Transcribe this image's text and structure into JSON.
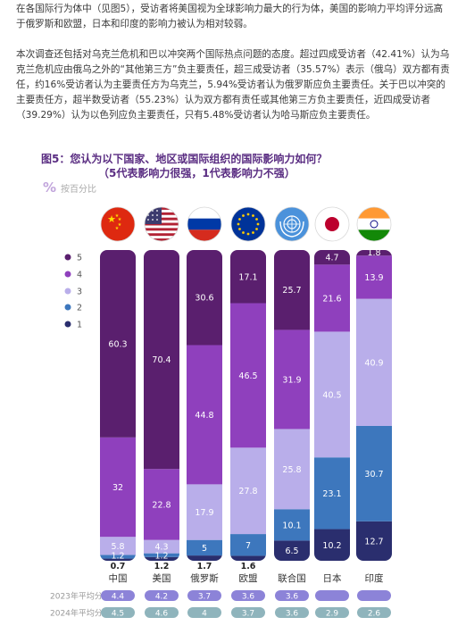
{
  "paragraphs": {
    "p1": "在各国际行为体中（见图5），受访者将美国视为全球影响力最大的行为体，美国的影响力平均评分远高于俄罗斯和欧盟，日本和印度的影响力被认为相对较弱。",
    "p2": "本次调查还包括对乌克兰危机和巴以冲突两个国际热点问题的态度。超过四成受访者（42.41%）认为乌克兰危机应由俄乌之外的“其他第三方”负主要责任，超三成受访者（35.57%）表示（俄乌）双方都有责任，约16%受访者认为主要责任方为乌克兰，5.94%受访者认为俄罗斯应负主要责任。关于巴以冲突的主要责任方，超半数受访者（55.23%）认为双方都有责任或其他第三方负主要责任，近四成受访者（39.29%）认为以色列应负主要责任，只有5.48%受访者认为哈马斯应负主要责任。"
  },
  "figure": {
    "title": "图5：您认为以下国家、地区或国际组织的国际影响力如何？",
    "subtitle": "（5代表影响力很强，1代表影响力不强）",
    "percent_icon": "percent-icon",
    "percent_label": "按百分比"
  },
  "chart_data": {
    "type": "bar",
    "stacked": true,
    "categories": [
      "中国",
      "美国",
      "俄罗斯",
      "欧盟",
      "联合国",
      "日本",
      "印度"
    ],
    "category_icons": [
      "china-flag-icon",
      "usa-flag-icon",
      "russia-flag-icon",
      "eu-flag-icon",
      "un-flag-icon",
      "japan-flag-icon",
      "india-flag-icon"
    ],
    "series": [
      {
        "name": "1",
        "color": "#2a2e6e",
        "values": [
          0.7,
          1.2,
          1.7,
          1.6,
          6.5,
          10.2,
          12.7
        ],
        "labels": [
          "0.7",
          "1.2",
          "1.7",
          "1.6",
          "6.5",
          "10.2",
          "12.7"
        ]
      },
      {
        "name": "2",
        "color": "#3d77bd",
        "values": [
          1.2,
          1.2,
          5,
          7,
          10.1,
          23.1,
          30.7
        ],
        "labels": [
          "1.2",
          "1.2",
          "5",
          "7",
          "10.1",
          "23.1",
          "30.7"
        ]
      },
      {
        "name": "3",
        "color": "#b9aeea",
        "values": [
          5.8,
          4.3,
          17.9,
          27.8,
          25.8,
          40.5,
          40.9
        ],
        "labels": [
          "5.8",
          "4.3",
          "17.9",
          "27.8",
          "25.8",
          "40.5",
          "40.9"
        ]
      },
      {
        "name": "4",
        "color": "#8f40bd",
        "values": [
          32,
          22.8,
          44.8,
          46.5,
          31.9,
          21.6,
          13.9
        ],
        "labels": [
          "32",
          "22.8",
          "44.8",
          "46.5",
          "31.9",
          "21.6",
          "13.9"
        ]
      },
      {
        "name": "5",
        "color": "#5a1f6e",
        "values": [
          60.3,
          70.4,
          30.6,
          17.1,
          25.7,
          4.7,
          1.8
        ],
        "labels": [
          "60.3",
          "70.4",
          "30.6",
          "17.1",
          "25.7",
          "4.7",
          "1.8"
        ]
      }
    ],
    "legend": [
      "5",
      "4",
      "3",
      "2",
      "1"
    ],
    "legend_position": "left",
    "ylim": [
      0,
      100
    ],
    "averages": [
      {
        "label": "2023年平均分",
        "color": "#8c83d8",
        "values": [
          "4.4",
          "4.2",
          "3.7",
          "3.6",
          "3.6",
          "",
          ""
        ]
      },
      {
        "label": "2024年平均分",
        "color": "#8fb4bc",
        "values": [
          "4.5",
          "4.6",
          "4",
          "3.7",
          "3.6",
          "2.9",
          "2.6"
        ]
      }
    ]
  }
}
